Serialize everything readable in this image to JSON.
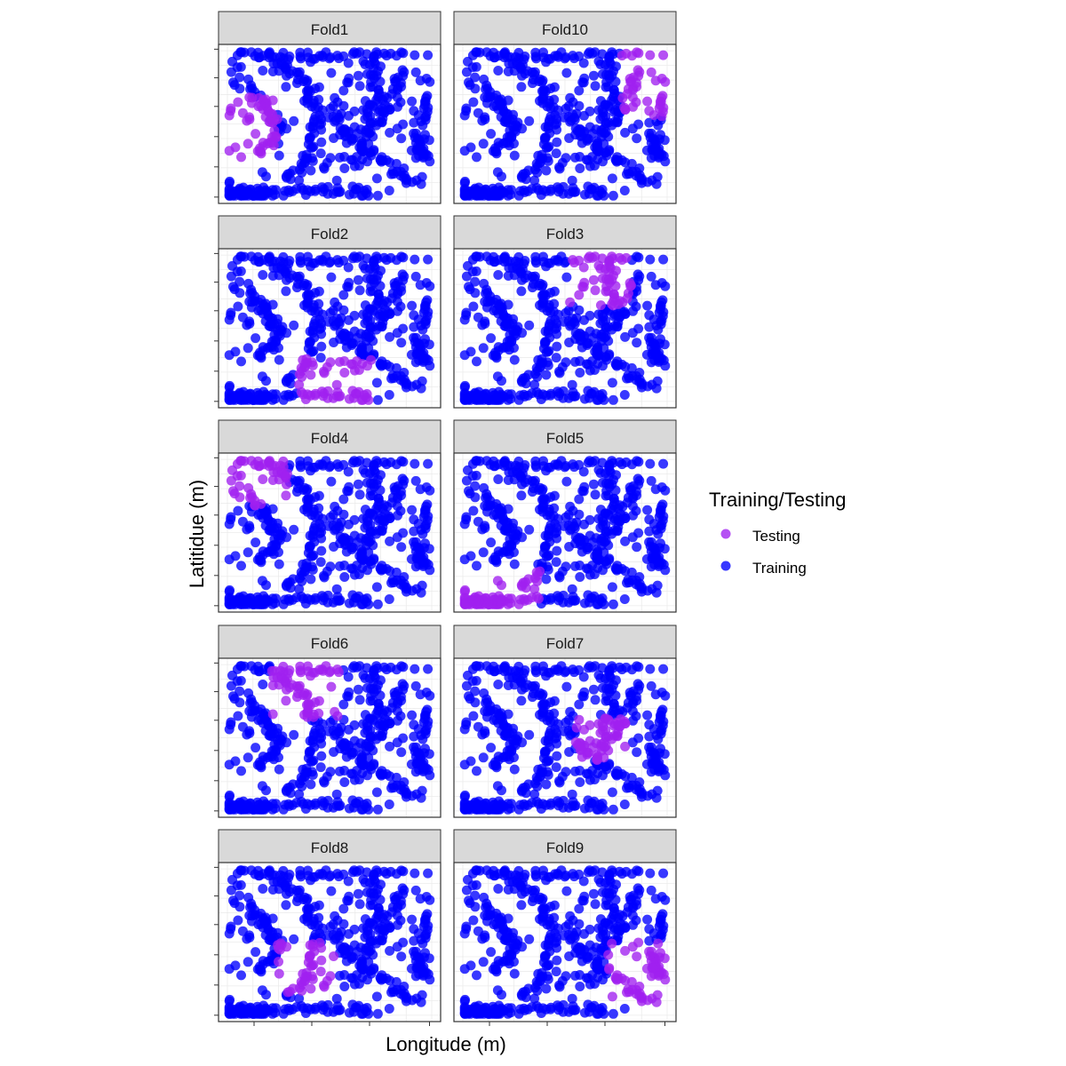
{
  "chart_data": {
    "type": "scatter",
    "facet_by": "fold",
    "facets": [
      "Fold1",
      "Fold10",
      "Fold2",
      "Fold3",
      "Fold4",
      "Fold5",
      "Fold6",
      "Fold7",
      "Fold8",
      "Fold9"
    ],
    "xlabel": "Longitude (m)",
    "ylabel": "Latitidue (m)",
    "x_tick_labels": [],
    "y_tick_labels": [],
    "grid": true,
    "legend": {
      "title": "Training/Testing",
      "placement": "right",
      "entries": [
        {
          "name": "Testing",
          "color": "#A020F0"
        },
        {
          "name": "Training",
          "color": "#0000FF"
        }
      ]
    },
    "testing_regions": {
      "Fold1": {
        "x": [
          0.0,
          0.25
        ],
        "y": [
          0.25,
          0.68
        ]
      },
      "Fold10": {
        "x": [
          0.77,
          1.0
        ],
        "y": [
          0.55,
          1.0
        ]
      },
      "Fold2": {
        "x": [
          0.35,
          0.7
        ],
        "y": [
          0.0,
          0.3
        ]
      },
      "Fold3": {
        "x": [
          0.52,
          0.82
        ],
        "y": [
          0.65,
          1.0
        ]
      },
      "Fold4": {
        "x": [
          0.0,
          0.3
        ],
        "y": [
          0.68,
          1.0
        ]
      },
      "Fold5": {
        "x": [
          0.0,
          0.38
        ],
        "y": [
          0.0,
          0.25
        ]
      },
      "Fold6": {
        "x": [
          0.22,
          0.55
        ],
        "y": [
          0.63,
          1.0
        ]
      },
      "Fold7": {
        "x": [
          0.55,
          0.82
        ],
        "y": [
          0.35,
          0.65
        ]
      },
      "Fold8": {
        "x": [
          0.25,
          0.52
        ],
        "y": [
          0.15,
          0.5
        ]
      },
      "Fold9": {
        "x": [
          0.7,
          1.0
        ],
        "y": [
          0.08,
          0.5
        ]
      }
    }
  },
  "colors": {
    "testing": "#A020F0",
    "training": "#0000FF",
    "strip_bg": "#D9D9D9",
    "panel_border": "#333333",
    "grid": "#EBEBEB"
  }
}
